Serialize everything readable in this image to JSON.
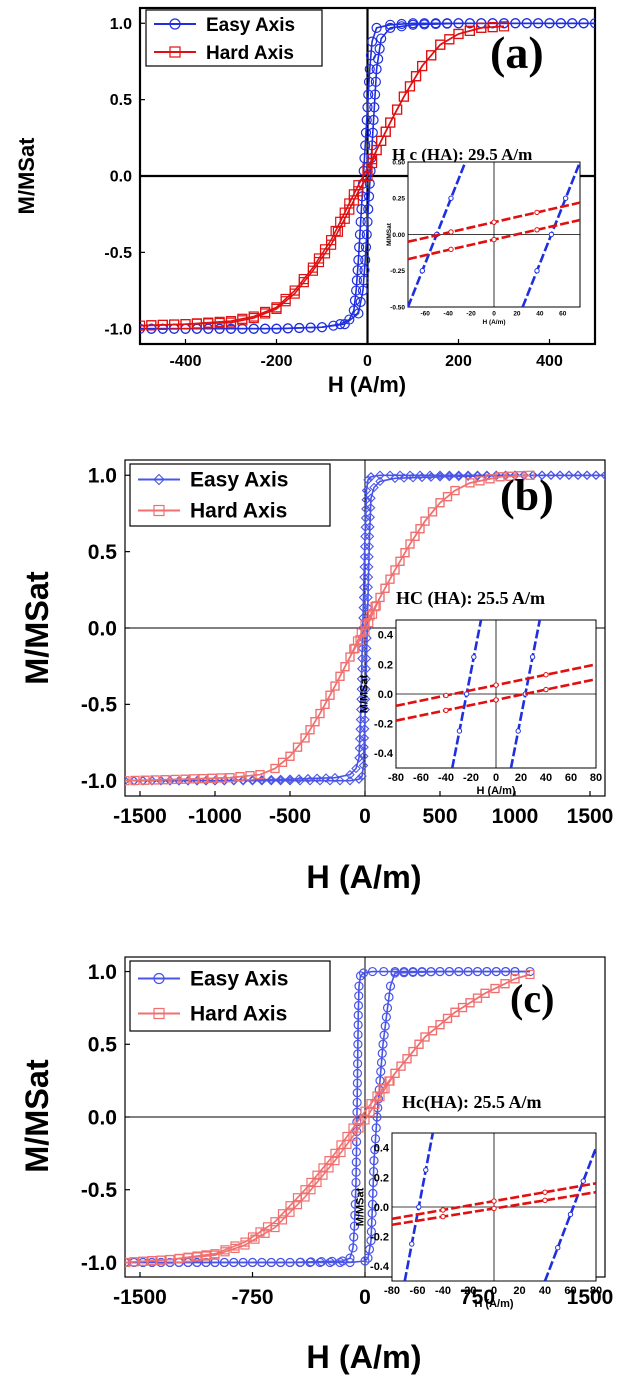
{
  "chart_data": [
    {
      "type": "line",
      "panel_label": "(a)",
      "annotation": "H c (HA): 29.5 A/m",
      "xlabel": "H (A/m)",
      "ylabel": "M/MSat",
      "xlim": [
        -500,
        500
      ],
      "ylim": [
        -1.1,
        1.1
      ],
      "xticks": [
        -400,
        -200,
        0,
        200,
        400
      ],
      "xtick_labels": [
        "-400",
        "-200",
        "0",
        "200",
        "400"
      ],
      "yticks": [
        -1.0,
        -0.5,
        0.0,
        0.5,
        1.0
      ],
      "ytick_labels": [
        "-1.0",
        "-0.5",
        "0.0",
        "0.5",
        "1.0"
      ],
      "legend_position": "top-left",
      "series": [
        {
          "name": "Easy Axis",
          "color": "#1f2fe0",
          "marker": "circle",
          "x": [
            -500,
            -400,
            -300,
            -200,
            -100,
            -60,
            -40,
            -30,
            -25,
            -20,
            -15,
            -10,
            -5,
            0,
            5,
            10,
            20,
            50,
            100,
            200,
            300,
            400,
            500
          ],
          "y": [
            -1.0,
            -1.0,
            -1.0,
            -1.0,
            -0.99,
            -0.97,
            -0.94,
            -0.88,
            -0.75,
            -0.55,
            -0.3,
            -0.05,
            0.2,
            0.45,
            0.7,
            0.88,
            0.97,
            0.99,
            1.0,
            1.0,
            1.0,
            1.0,
            1.0
          ]
        },
        {
          "name": "Easy Axis",
          "color": "#1f2fe0",
          "marker": "circle",
          "x": [
            500,
            400,
            300,
            200,
            100,
            50,
            30,
            20,
            15,
            10,
            5,
            0,
            -5,
            -10,
            -20,
            -50,
            -100,
            -200,
            -300,
            -400,
            -500
          ],
          "y": [
            1.0,
            1.0,
            1.0,
            1.0,
            0.99,
            0.97,
            0.9,
            0.7,
            0.45,
            0.2,
            -0.05,
            -0.3,
            -0.55,
            -0.75,
            -0.9,
            -0.97,
            -0.99,
            -1.0,
            -1.0,
            -1.0,
            -1.0
          ]
        },
        {
          "name": "Hard Axis",
          "color": "#e01010",
          "marker": "square",
          "x": [
            -500,
            -400,
            -300,
            -250,
            -200,
            -160,
            -120,
            -80,
            -50,
            -20,
            0,
            20,
            50,
            80,
            120,
            160,
            200,
            250,
            300
          ],
          "y": [
            -0.98,
            -0.97,
            -0.95,
            -0.92,
            -0.86,
            -0.75,
            -0.6,
            -0.42,
            -0.24,
            -0.06,
            0.05,
            0.17,
            0.35,
            0.52,
            0.72,
            0.86,
            0.93,
            0.97,
            0.98
          ]
        },
        {
          "name": "Hard Axis",
          "color": "#e01010",
          "marker": "square",
          "x": [
            300,
            250,
            200,
            160,
            120,
            80,
            50,
            20,
            0,
            -20,
            -50,
            -80,
            -120,
            -160,
            -200,
            -250,
            -300,
            -400,
            -500
          ],
          "y": [
            0.98,
            0.97,
            0.93,
            0.86,
            0.72,
            0.52,
            0.35,
            0.17,
            0.0,
            -0.1,
            -0.28,
            -0.45,
            -0.62,
            -0.77,
            -0.87,
            -0.93,
            -0.96,
            -0.97,
            -0.98
          ]
        }
      ],
      "inset": {
        "xlabel": "H (A/m)",
        "ylabel": "M/MSat",
        "xlim": [
          -75,
          75
        ],
        "ylim": [
          -0.5,
          0.5
        ],
        "xticks": [
          -60,
          -40,
          -20,
          0,
          20,
          40,
          60
        ],
        "xtick_labels": [
          "-60",
          "-40",
          "-20",
          "0",
          "20",
          "40",
          "60"
        ],
        "yticks": [
          -0.5,
          -0.25,
          0.0,
          0.25,
          0.5
        ],
        "ytick_labels": [
          "-0.50",
          "-0.25",
          "0.00",
          "0.25",
          "0.50"
        ],
        "series": [
          {
            "color": "#1f2fe0",
            "x": [
              -75,
              -25
            ],
            "y": [
              -0.5,
              0.5
            ]
          },
          {
            "color": "#1f2fe0",
            "x": [
              25,
              75
            ],
            "y": [
              -0.5,
              0.5
            ]
          },
          {
            "color": "#e01010",
            "x": [
              -75,
              75
            ],
            "y": [
              -0.05,
              0.22
            ]
          },
          {
            "color": "#e01010",
            "x": [
              -75,
              75
            ],
            "y": [
              -0.17,
              0.1
            ]
          }
        ]
      }
    },
    {
      "type": "line",
      "panel_label": "(b)",
      "annotation": "HC (HA): 25.5 A/m",
      "xlabel": "H (A/m)",
      "ylabel": "M/MSat",
      "xlim": [
        -1600,
        1600
      ],
      "ylim": [
        -1.1,
        1.1
      ],
      "xticks": [
        -1500,
        -1000,
        -500,
        0,
        500,
        1000,
        1500
      ],
      "xtick_labels": [
        "-1500",
        "-1000",
        "-500",
        "0",
        "500",
        "1000",
        "1500"
      ],
      "yticks": [
        -1.0,
        -0.5,
        0.0,
        0.5,
        1.0
      ],
      "ytick_labels": [
        "-1.0",
        "-0.5",
        "0.0",
        "0.5",
        "1.0"
      ],
      "legend_position": "top-left",
      "series": [
        {
          "name": "Easy Axis",
          "color": "#4a55e8",
          "marker": "diamond",
          "x": [
            -1600,
            -1000,
            -500,
            -200,
            -100,
            -60,
            -40,
            -30,
            -20,
            -10,
            0,
            10,
            20,
            40,
            100,
            500,
            1000,
            1600
          ],
          "y": [
            -1.0,
            -1.0,
            -0.99,
            -0.98,
            -0.96,
            -0.92,
            -0.85,
            -0.6,
            -0.2,
            0.2,
            0.6,
            0.9,
            0.97,
            0.99,
            1.0,
            1.0,
            1.0,
            1.0
          ]
        },
        {
          "name": "Easy Axis",
          "color": "#4a55e8",
          "marker": "diamond",
          "x": [
            1600,
            1000,
            500,
            200,
            100,
            60,
            40,
            30,
            20,
            10,
            0,
            -10,
            -20,
            -40,
            -100,
            -500,
            -1000,
            -1600
          ],
          "y": [
            1.0,
            1.0,
            0.99,
            0.98,
            0.96,
            0.92,
            0.85,
            0.6,
            0.2,
            -0.2,
            -0.6,
            -0.9,
            -0.97,
            -0.99,
            -1.0,
            -1.0,
            -1.0,
            -1.0
          ]
        },
        {
          "name": "Hard Axis",
          "color": "#f07070",
          "marker": "square",
          "x": [
            -1600,
            -1200,
            -900,
            -700,
            -600,
            -500,
            -400,
            -300,
            -200,
            -100,
            0,
            100,
            200,
            300,
            400,
            500,
            600,
            700,
            900,
            1100
          ],
          "y": [
            -1.0,
            -0.99,
            -0.98,
            -0.96,
            -0.92,
            -0.84,
            -0.72,
            -0.56,
            -0.38,
            -0.19,
            0.02,
            0.2,
            0.38,
            0.55,
            0.7,
            0.82,
            0.9,
            0.95,
            0.99,
            1.0
          ]
        },
        {
          "name": "Hard Axis",
          "color": "#f07070",
          "marker": "square",
          "x": [
            1100,
            900,
            700,
            600,
            500,
            400,
            300,
            200,
            100,
            0,
            -100,
            -200,
            -300,
            -400,
            -500,
            -600,
            -700,
            -900,
            -1200,
            -1600
          ],
          "y": [
            1.0,
            0.99,
            0.95,
            0.9,
            0.82,
            0.7,
            0.55,
            0.38,
            0.2,
            -0.02,
            -0.19,
            -0.38,
            -0.56,
            -0.72,
            -0.84,
            -0.92,
            -0.96,
            -0.98,
            -0.99,
            -1.0
          ]
        }
      ],
      "inset": {
        "xlabel": "H (A/m)",
        "ylabel": "M/MSat",
        "xlim": [
          -80,
          80
        ],
        "ylim": [
          -0.5,
          0.5
        ],
        "xticks": [
          -80,
          -60,
          -40,
          -20,
          0,
          20,
          40,
          60,
          80
        ],
        "xtick_labels": [
          "-80",
          "-60",
          "-40",
          "-20",
          "0",
          "20",
          "40",
          "60",
          "80"
        ],
        "yticks": [
          -0.4,
          -0.2,
          0.0,
          0.2,
          0.4
        ],
        "ytick_labels": [
          "-0.4",
          "-0.2",
          "0.0",
          "0.2",
          "0.4"
        ],
        "series": [
          {
            "color": "#1f2fe0",
            "x": [
              -35,
              -12
            ],
            "y": [
              -0.5,
              0.5
            ]
          },
          {
            "color": "#1f2fe0",
            "x": [
              12,
              35
            ],
            "y": [
              -0.5,
              0.5
            ]
          },
          {
            "color": "#e01010",
            "x": [
              -80,
              80
            ],
            "y": [
              -0.08,
              0.2
            ]
          },
          {
            "color": "#e01010",
            "x": [
              -80,
              80
            ],
            "y": [
              -0.18,
              0.1
            ]
          }
        ]
      }
    },
    {
      "type": "line",
      "panel_label": "(c)",
      "annotation": "Hc(HA): 25.5 A/m",
      "xlabel": "H (A/m)",
      "ylabel": "M/MSat",
      "xlim": [
        -1600,
        1600
      ],
      "ylim": [
        -1.1,
        1.1
      ],
      "xticks": [
        -1500,
        -750,
        0,
        750,
        1500
      ],
      "xtick_labels": [
        "-1500",
        "-750",
        "0",
        "750",
        "1500"
      ],
      "yticks": [
        -1.0,
        -0.5,
        0.0,
        0.5,
        1.0
      ],
      "ytick_labels": [
        "-1.0",
        "-0.5",
        "0.0",
        "0.5",
        "1.0"
      ],
      "legend_position": "top-left",
      "series": [
        {
          "name": "Easy Axis",
          "color": "#4a55e8",
          "marker": "circle",
          "x": [
            -1600,
            -1000,
            -500,
            -150,
            -100,
            -80,
            -70,
            -60,
            -55,
            -50,
            -45,
            -40,
            -30,
            -10,
            50,
            200,
            500,
            1000,
            1100
          ],
          "y": [
            -1.0,
            -1.0,
            -1.0,
            -0.99,
            -0.97,
            -0.9,
            -0.75,
            -0.45,
            -0.1,
            0.3,
            0.7,
            0.9,
            0.97,
            0.99,
            1.0,
            1.0,
            1.0,
            1.0,
            1.0
          ]
        },
        {
          "name": "Easy Axis",
          "color": "#4a55e8",
          "marker": "circle",
          "x": [
            1100,
            1000,
            500,
            200,
            170,
            150,
            120,
            100,
            80,
            60,
            50,
            40,
            20,
            0,
            -100,
            -500,
            -1000,
            -1600
          ],
          "y": [
            1.0,
            1.0,
            1.0,
            0.99,
            0.9,
            0.75,
            0.5,
            0.25,
            0.0,
            -0.3,
            -0.6,
            -0.85,
            -0.97,
            -0.99,
            -1.0,
            -1.0,
            -1.0,
            -1.0
          ]
        },
        {
          "name": "Hard Axis",
          "color": "#f07070",
          "marker": "square",
          "x": [
            -1600,
            -1300,
            -1000,
            -800,
            -600,
            -400,
            -200,
            0,
            200,
            400,
            600,
            800,
            1000,
            1100
          ],
          "y": [
            -1.0,
            -0.98,
            -0.95,
            -0.88,
            -0.76,
            -0.55,
            -0.3,
            -0.02,
            0.3,
            0.55,
            0.72,
            0.85,
            0.95,
            0.98
          ]
        },
        {
          "name": "Hard Axis",
          "color": "#f07070",
          "marker": "square",
          "x": [
            1100,
            1000,
            800,
            600,
            400,
            200,
            0,
            -200,
            -400,
            -600,
            -800,
            -1000,
            -1300,
            -1600
          ],
          "y": [
            0.98,
            0.95,
            0.85,
            0.72,
            0.55,
            0.3,
            0.04,
            -0.25,
            -0.5,
            -0.72,
            -0.86,
            -0.94,
            -0.98,
            -1.0
          ]
        }
      ],
      "inset": {
        "xlabel": "H (A/m)",
        "ylabel": "M/MSat",
        "xlim": [
          -80,
          80
        ],
        "ylim": [
          -0.5,
          0.5
        ],
        "xticks": [
          -80,
          -60,
          -40,
          -20,
          0,
          20,
          40,
          60,
          80
        ],
        "xtick_labels": [
          "-80",
          "-60",
          "-40",
          "-20",
          "0",
          "20",
          "40",
          "60",
          "80"
        ],
        "yticks": [
          -0.4,
          -0.2,
          0.0,
          0.2,
          0.4
        ],
        "ytick_labels": [
          "-0.4",
          "-0.2",
          "0.0",
          "0.2",
          "0.4"
        ],
        "series": [
          {
            "color": "#1f2fe0",
            "x": [
              -70,
              -48
            ],
            "y": [
              -0.5,
              0.5
            ]
          },
          {
            "color": "#1f2fe0",
            "x": [
              40,
              80
            ],
            "y": [
              -0.5,
              0.4
            ]
          },
          {
            "color": "#e01010",
            "x": [
              -80,
              80
            ],
            "y": [
              -0.08,
              0.16
            ]
          },
          {
            "color": "#e01010",
            "x": [
              -80,
              80
            ],
            "y": [
              -0.12,
              0.1
            ]
          }
        ]
      }
    }
  ]
}
